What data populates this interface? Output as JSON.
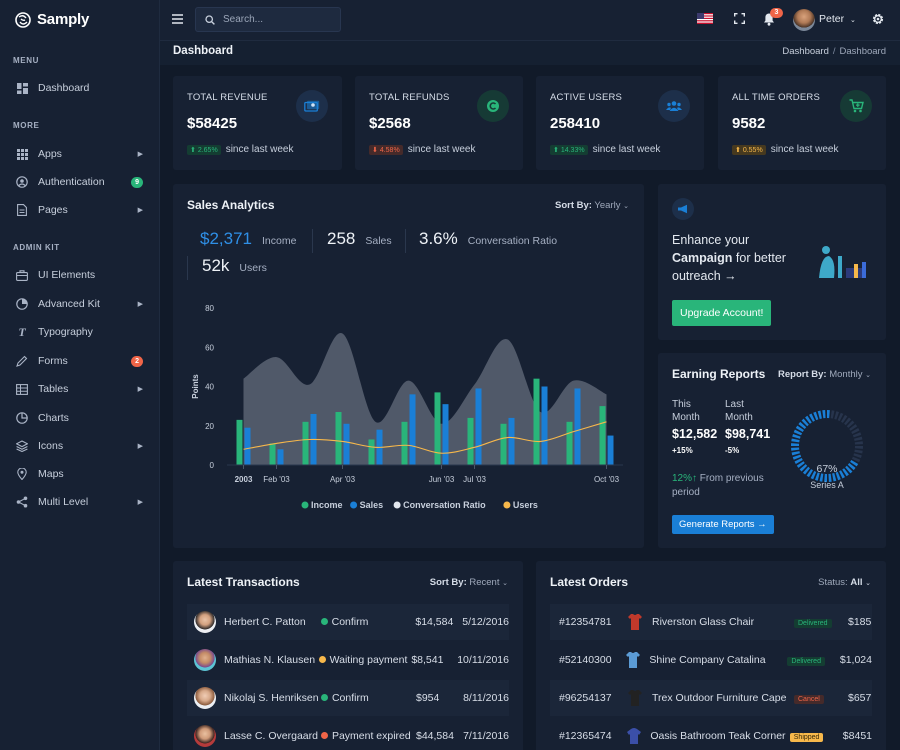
{
  "brand": {
    "name": "Samply"
  },
  "sidebar": {
    "menu_title": "MENU",
    "more_title": "MORE",
    "admin_title": "ADMIN KIT",
    "items": [
      {
        "label": "Dashboard",
        "icon": "dashboard-icon"
      },
      {
        "label": "Apps",
        "icon": "apps-icon"
      },
      {
        "label": "Authentication",
        "icon": "user-circle-icon",
        "badge": "9",
        "badge_color": "#29b57a"
      },
      {
        "label": "Pages",
        "icon": "pages-icon"
      },
      {
        "label": "UI Elements",
        "icon": "briefcase-icon"
      },
      {
        "label": "Advanced Kit",
        "icon": "pie-icon"
      },
      {
        "label": "Typography",
        "icon": "typography-icon"
      },
      {
        "label": "Forms",
        "icon": "forms-icon",
        "badge": "2",
        "badge_color": "#f06548"
      },
      {
        "label": "Tables",
        "icon": "tables-icon"
      },
      {
        "label": "Charts",
        "icon": "charts-icon"
      },
      {
        "label": "Icons",
        "icon": "layers-icon"
      },
      {
        "label": "Maps",
        "icon": "map-pin-icon"
      },
      {
        "label": "Multi Level",
        "icon": "share-icon"
      }
    ]
  },
  "topbar": {
    "search_placeholder": "Search...",
    "notification_count": "3",
    "user_name": "Peter"
  },
  "page": {
    "title": "Dashboard",
    "breadcrumb": [
      "Dashboard",
      "/",
      "Dashboard"
    ]
  },
  "stats": [
    {
      "label": "TOTAL REVENUE",
      "value": "$58425",
      "change": "2.65%",
      "direction": "up",
      "suffix": "since last week",
      "color": "#29b57a",
      "icon": "money-icon"
    },
    {
      "label": "TOTAL REFUNDS",
      "value": "$2568",
      "change": "4.58%",
      "direction": "down",
      "suffix": "since last week",
      "color": "#f06548",
      "icon": "refund-icon"
    },
    {
      "label": "ACTIVE USERS",
      "value": "258410",
      "change": "14.33%",
      "direction": "up",
      "suffix": "since last week",
      "color": "#29b57a",
      "icon": "users-icon"
    },
    {
      "label": "ALL TIME ORDERS",
      "value": "9582",
      "change": "0.55%",
      "direction": "up",
      "suffix": "since last week",
      "color": "#f7b84b",
      "icon": "cart-icon"
    }
  ],
  "sales": {
    "title": "Sales Analytics",
    "sort_label": "Sort By:",
    "sort_value": "Yearly",
    "kpis": [
      {
        "value": "$2,371",
        "label": "Income"
      },
      {
        "value": "258",
        "label": "Sales"
      },
      {
        "value": "3.6%",
        "label": "Conversation Ratio"
      },
      {
        "value": "52k",
        "label": "Users"
      }
    ]
  },
  "chart_data": {
    "type": "bar",
    "title": "",
    "ylabel": "Points",
    "ylim": [
      0,
      80
    ],
    "yticks": [
      "0",
      "20",
      "40",
      "60",
      "80"
    ],
    "x_tick_labels": [
      "2003",
      "Feb '03",
      "Apr '03",
      "Jun '03",
      "Jul '03",
      "Oct '03"
    ],
    "x_tick_index": [
      0,
      1,
      3,
      6,
      7,
      11
    ],
    "series": [
      {
        "name": "Income",
        "type": "bar",
        "color": "#29b57a",
        "values": [
          23,
          11,
          22,
          27,
          13,
          22,
          37,
          24,
          21,
          44,
          22,
          30
        ]
      },
      {
        "name": "Sales",
        "type": "bar",
        "color": "#1a7fd6",
        "values": [
          19,
          8,
          26,
          21,
          18,
          36,
          31,
          39,
          24,
          40,
          39,
          15
        ]
      },
      {
        "name": "Conversation Ratio",
        "type": "area",
        "color": "#5b6373",
        "values": [
          44,
          55,
          41,
          67,
          22,
          43,
          21,
          41,
          64,
          27,
          43,
          36
        ]
      },
      {
        "name": "Users",
        "type": "line",
        "color": "#f7b84b",
        "values": [
          8,
          11,
          13,
          12,
          9,
          10,
          6,
          9,
          14,
          12,
          17,
          22
        ]
      }
    ]
  },
  "campaign": {
    "line1": "Enhance your",
    "bold": "Campaign",
    "line2": " for better",
    "line3": "outreach",
    "button": "Upgrade Account!"
  },
  "earning": {
    "title": "Earning Reports",
    "sort_label": "Report By:",
    "sort_value": "Monthly",
    "this_month_label": "This Month",
    "this_month_value": "$12,582",
    "this_month_change": "+15%",
    "last_month_label": "Last Month",
    "last_month_value": "$98,741",
    "last_month_change": "-5%",
    "gauge_value": 67,
    "gauge_text": "67%",
    "gauge_series": "Series A",
    "footnote_value": "12%",
    "footnote_text": "From previous period",
    "button": "Generate Reports"
  },
  "transactions": {
    "title": "Latest Transactions",
    "sort_label": "Sort By:",
    "sort_value": "Recent",
    "rows": [
      {
        "name": "Herbert C. Patton",
        "status": "Confirm",
        "status_color": "#29b57a",
        "amount": "$14,584",
        "date": "5/12/2016"
      },
      {
        "name": "Mathias N. Klausen",
        "status": "Waiting payment",
        "status_color": "#f7b84b",
        "amount": "$8,541",
        "date": "10/11/2016"
      },
      {
        "name": "Nikolaj S. Henriksen",
        "status": "Confirm",
        "status_color": "#29b57a",
        "amount": "$954",
        "date": "8/11/2016"
      },
      {
        "name": "Lasse C. Overgaard",
        "status": "Payment expired",
        "status_color": "#f06548",
        "amount": "$44,584",
        "date": "7/11/2016"
      }
    ]
  },
  "orders": {
    "title": "Latest Orders",
    "sort_label": "Status:",
    "sort_value": "All",
    "rows": [
      {
        "id": "#12354781",
        "product": "Riverston Glass Chair",
        "status": "Delivered",
        "status_color": "#29b57a",
        "price": "$185",
        "icon": "shirt-icon",
        "icon_color": "#c0392b"
      },
      {
        "id": "#52140300",
        "product": "Shine Company Catalina",
        "status": "Delivered",
        "status_color": "#29b57a",
        "price": "$1,024",
        "icon": "shirt-icon",
        "icon_color": "#5b9bd5"
      },
      {
        "id": "#96254137",
        "product": "Trex Outdoor Furniture Cape",
        "status": "Cancel",
        "status_color": "#f06548",
        "price": "$657",
        "icon": "shirt-icon",
        "icon_color": "#222222"
      },
      {
        "id": "#12365474",
        "product": "Oasis Bathroom Teak Corner",
        "status": "Shipped",
        "status_color": "#f7b84b",
        "price": "$8451",
        "icon": "hoodie-icon",
        "icon_color": "#3b4fa8"
      }
    ]
  }
}
